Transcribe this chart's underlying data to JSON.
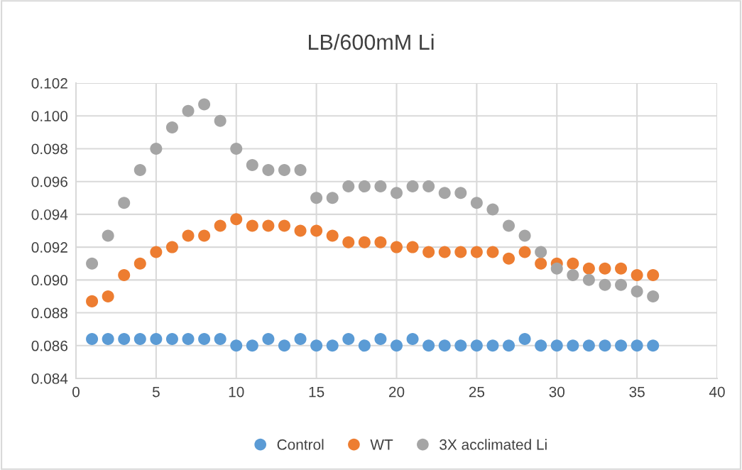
{
  "chart_data": {
    "type": "scatter",
    "title": "LB/600mM Li",
    "x": [
      1,
      2,
      3,
      4,
      5,
      6,
      7,
      8,
      9,
      10,
      11,
      12,
      13,
      14,
      15,
      16,
      17,
      18,
      19,
      20,
      21,
      22,
      23,
      24,
      25,
      26,
      27,
      28,
      29,
      30,
      31,
      32,
      33,
      34,
      35,
      36
    ],
    "series": [
      {
        "name": "Control",
        "color": "#5b9bd5",
        "values": [
          0.0864,
          0.0864,
          0.0864,
          0.0864,
          0.0864,
          0.0864,
          0.0864,
          0.0864,
          0.0864,
          0.086,
          0.086,
          0.0864,
          0.086,
          0.0864,
          0.086,
          0.086,
          0.0864,
          0.086,
          0.0864,
          0.086,
          0.0864,
          0.086,
          0.086,
          0.086,
          0.086,
          0.086,
          0.086,
          0.0864,
          0.086,
          0.086,
          0.086,
          0.086,
          0.086,
          0.086,
          0.086,
          0.086
        ]
      },
      {
        "name": "WT",
        "color": "#ed7d31",
        "values": [
          0.0887,
          0.089,
          0.0903,
          0.091,
          0.0917,
          0.092,
          0.0927,
          0.0927,
          0.0933,
          0.0937,
          0.0933,
          0.0933,
          0.0933,
          0.093,
          0.093,
          0.0927,
          0.0923,
          0.0923,
          0.0923,
          0.092,
          0.092,
          0.0917,
          0.0917,
          0.0917,
          0.0917,
          0.0917,
          0.0913,
          0.0917,
          0.091,
          0.091,
          0.091,
          0.0907,
          0.0907,
          0.0907,
          0.0903,
          0.0903
        ]
      },
      {
        "name": "3X acclimated Li",
        "color": "#a5a5a5",
        "values": [
          0.091,
          0.0927,
          0.0947,
          0.0967,
          0.098,
          0.0993,
          0.1003,
          0.1007,
          0.0997,
          0.098,
          0.097,
          0.0967,
          0.0967,
          0.0967,
          0.095,
          0.095,
          0.0957,
          0.0957,
          0.0957,
          0.0953,
          0.0957,
          0.0957,
          0.0953,
          0.0953,
          0.0947,
          0.0943,
          0.0933,
          0.0927,
          0.0917,
          0.0907,
          0.0903,
          0.09,
          0.0897,
          0.0897,
          0.0893,
          0.089
        ]
      }
    ],
    "xlim": [
      0,
      40
    ],
    "xticks": [
      0,
      5,
      10,
      15,
      20,
      25,
      30,
      35,
      40
    ],
    "ylim": [
      0.084,
      0.102
    ],
    "yticks": [
      {
        "value": 0.084,
        "label": "0.084"
      },
      {
        "value": 0.086,
        "label": "0.086"
      },
      {
        "value": 0.088,
        "label": "0.088"
      },
      {
        "value": 0.09,
        "label": "0.090"
      },
      {
        "value": 0.092,
        "label": "0.092"
      },
      {
        "value": 0.094,
        "label": "0.094"
      },
      {
        "value": 0.096,
        "label": "0.096"
      },
      {
        "value": 0.098,
        "label": "0.098"
      },
      {
        "value": 0.1,
        "label": "0.100"
      },
      {
        "value": 0.102,
        "label": "0.102"
      }
    ],
    "grid": true,
    "legend": "bottom",
    "marker": "circle"
  }
}
